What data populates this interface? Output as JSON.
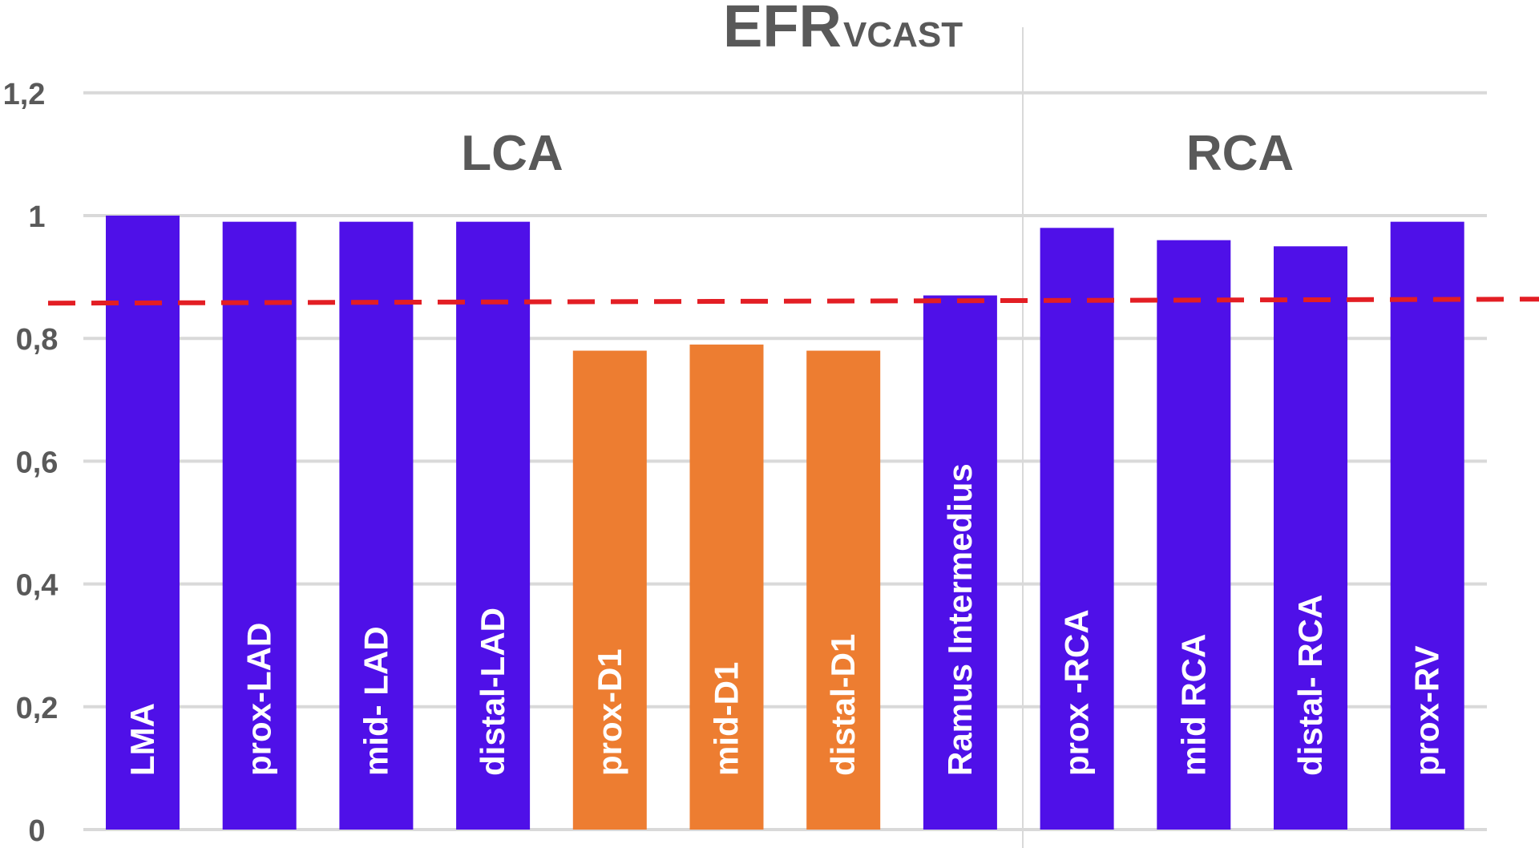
{
  "chart_data": {
    "type": "bar",
    "title": "EFR",
    "title_subscript": "VCAST",
    "xlabel": "",
    "ylabel": "",
    "ylim": [
      0,
      1.2
    ],
    "yticks": [
      "0",
      "0,2",
      "0,4",
      "0,6",
      "0,8",
      "1",
      "1,2"
    ],
    "ytick_values": [
      0,
      0.2,
      0.4,
      0.6,
      0.8,
      1.0,
      1.2
    ],
    "grid": true,
    "groups": [
      {
        "label": "LCA",
        "categories": [
          0,
          1,
          2,
          3,
          4,
          5,
          6,
          7
        ]
      },
      {
        "label": "RCA",
        "categories": [
          8,
          9,
          10,
          11
        ]
      }
    ],
    "categories": [
      "LMA",
      "prox-LAD",
      "mid- LAD",
      "distal-LAD",
      "prox-D1",
      "mid-D1",
      "distal-D1",
      "Ramus Intermedius",
      "prox -RCA",
      "mid RCA",
      "distal- RCA",
      "prox-RV"
    ],
    "values": [
      1.0,
      0.99,
      0.99,
      0.99,
      0.78,
      0.79,
      0.78,
      0.87,
      0.98,
      0.96,
      0.95,
      0.99
    ],
    "bar_colors": [
      "#4f10e8",
      "#4f10e8",
      "#4f10e8",
      "#4f10e8",
      "#ed7d31",
      "#ed7d31",
      "#ed7d31",
      "#4f10e8",
      "#4f10e8",
      "#4f10e8",
      "#4f10e8",
      "#4f10e8"
    ],
    "threshold": {
      "value": 0.86,
      "style": "dashed",
      "color": "#e31e24"
    },
    "colors": {
      "grid": "#d9d9d9",
      "text": "#595959",
      "bar_label": "#ffffff"
    }
  }
}
